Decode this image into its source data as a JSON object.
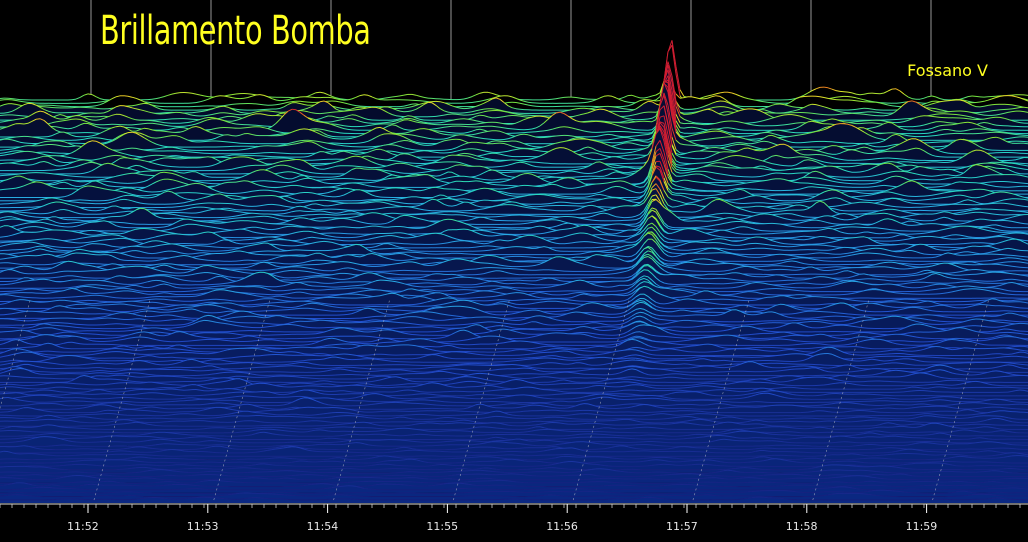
{
  "title": "Brillamento Bomba",
  "station": "Fossano V",
  "colors": {
    "background": "#000000",
    "title": "#ffff20",
    "low": "#1f3fb8",
    "mid": "#20d0c0",
    "high": "#e0e020",
    "peak": "#d02030",
    "grid": "#c8c8c8"
  },
  "chart_data": {
    "type": "waterfall",
    "title": "Brillamento Bomba",
    "station": "Fossano V",
    "x_axis": {
      "ticks": [
        "11:52",
        "11:53",
        "11:54",
        "11:55",
        "11:56",
        "11:57",
        "11:58",
        "11:59"
      ],
      "range_minutes": [
        "11:51.6",
        "11:59.9"
      ]
    },
    "grid": true,
    "events": [
      {
        "time": "11:56.4",
        "label": "meteor head echo / bright meteor",
        "intensity": "peak"
      }
    ]
  }
}
